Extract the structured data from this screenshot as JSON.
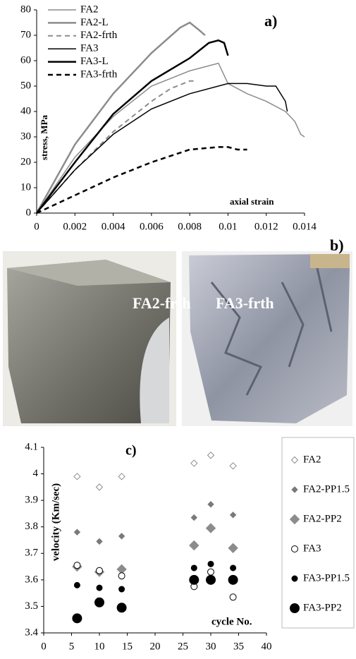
{
  "chart_data": [
    {
      "type": "line",
      "title": "a)",
      "xlabel": "axial strain",
      "ylabel": "stress, MPa",
      "xlim": [
        0,
        0.014
      ],
      "xticks": [
        0,
        0.002,
        0.004,
        0.006,
        0.008,
        0.01,
        0.012,
        0.014
      ],
      "ylim": [
        0,
        80
      ],
      "yticks": [
        0,
        10,
        20,
        30,
        40,
        50,
        60,
        70,
        80
      ],
      "grid": false,
      "legend": "upper left",
      "series": [
        {
          "name": "FA2",
          "color": "#8c8c8c",
          "linestyle": "solid",
          "linewidth": 1.5,
          "x": [
            0,
            0.002,
            0.004,
            0.006,
            0.008,
            0.0095,
            0.01,
            0.011,
            0.012,
            0.013,
            0.0135,
            0.0138,
            0.014
          ],
          "values": [
            0,
            22,
            38,
            50,
            56,
            59,
            51,
            47,
            44,
            40,
            36,
            31,
            30
          ]
        },
        {
          "name": "FA2-L",
          "color": "#8c8c8c",
          "linestyle": "solid",
          "linewidth": 2.5,
          "x": [
            0,
            0.002,
            0.004,
            0.006,
            0.0075,
            0.008,
            0.0085,
            0.0088
          ],
          "values": [
            0,
            27,
            47,
            63,
            73,
            75,
            72,
            70
          ]
        },
        {
          "name": "FA2-frth",
          "color": "#8c8c8c",
          "linestyle": "dashed",
          "linewidth": 2,
          "x": [
            0,
            0.002,
            0.004,
            0.006,
            0.007,
            0.008,
            0.0082
          ],
          "values": [
            0,
            17,
            32,
            44,
            49,
            52,
            52
          ]
        },
        {
          "name": "FA3",
          "color": "#000000",
          "linestyle": "solid",
          "linewidth": 1.5,
          "x": [
            0,
            0.002,
            0.004,
            0.006,
            0.008,
            0.01,
            0.011,
            0.012,
            0.0125,
            0.013,
            0.0131
          ],
          "values": [
            0,
            17,
            31,
            41,
            47,
            51,
            51,
            50,
            50,
            44,
            40
          ]
        },
        {
          "name": "FA3-L",
          "color": "#000000",
          "linestyle": "solid",
          "linewidth": 2.5,
          "x": [
            0,
            0.002,
            0.004,
            0.006,
            0.008,
            0.009,
            0.0095,
            0.0098,
            0.01
          ],
          "values": [
            0,
            20,
            39,
            52,
            61,
            67,
            68,
            67,
            62
          ]
        },
        {
          "name": "FA3-frth",
          "color": "#000000",
          "linestyle": "dashed",
          "linewidth": 2.5,
          "x": [
            0,
            0.002,
            0.004,
            0.006,
            0.008,
            0.0095,
            0.01,
            0.0105,
            0.011
          ],
          "values": [
            0,
            7,
            14,
            20,
            25,
            26,
            26,
            25,
            25
          ]
        }
      ]
    },
    {
      "type": "scatter",
      "title": "c)",
      "xlabel": "cycle No.",
      "ylabel": "velocity (Km/sec)",
      "xlim": [
        0,
        40
      ],
      "xticks": [
        0,
        5,
        10,
        15,
        20,
        25,
        30,
        35,
        40
      ],
      "ylim": [
        3.4,
        4.1
      ],
      "yticks": [
        3.4,
        3.5,
        3.6,
        3.7,
        3.8,
        3.9,
        4,
        4.1
      ],
      "grid": false,
      "legend": "right",
      "x": [
        6,
        10,
        14,
        27,
        30,
        34
      ],
      "series": [
        {
          "name": "FA2",
          "color": "#8c8c8c",
          "marker": "diamond-open",
          "values": [
            3.99,
            3.95,
            3.99,
            4.04,
            4.07,
            4.03
          ]
        },
        {
          "name": "FA2-PP1.5",
          "color": "#7a7a7a",
          "marker": "diamond-small",
          "values": [
            3.78,
            3.745,
            3.765,
            3.835,
            3.885,
            3.845
          ]
        },
        {
          "name": "FA2-PP2",
          "color": "#8c8c8c",
          "marker": "diamond-large",
          "values": [
            3.65,
            3.63,
            3.64,
            3.73,
            3.795,
            3.72
          ]
        },
        {
          "name": "FA3",
          "color": "#000000",
          "marker": "circle-open",
          "values": [
            3.655,
            3.635,
            3.615,
            3.575,
            3.63,
            3.535
          ]
        },
        {
          "name": "FA3-PP1.5",
          "color": "#000000",
          "marker": "circle-small",
          "values": [
            3.58,
            3.57,
            3.565,
            3.645,
            3.66,
            3.645
          ]
        },
        {
          "name": "FA3-PP2",
          "color": "#000000",
          "marker": "circle-large",
          "values": [
            3.455,
            3.515,
            3.495,
            3.6,
            3.6,
            3.6
          ]
        }
      ]
    }
  ],
  "photos": {
    "label": "b)",
    "captions": [
      "FA2-frth",
      "FA3-frth"
    ]
  }
}
